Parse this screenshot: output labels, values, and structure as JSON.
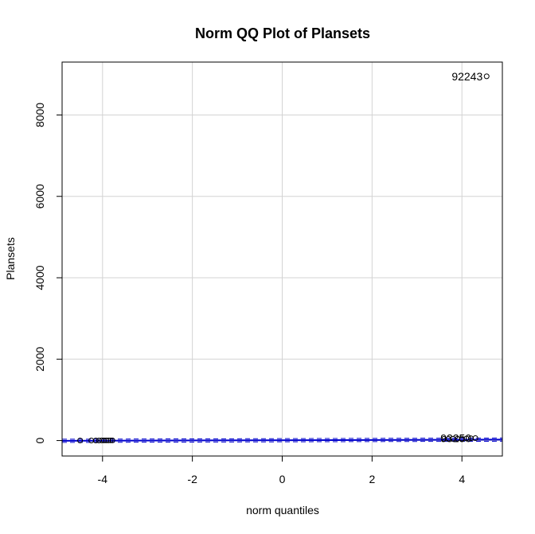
{
  "chart_data": {
    "type": "scatter",
    "title": "Norm QQ Plot of Plansets",
    "xlabel": "norm quantiles",
    "ylabel": "Plansets",
    "xlim": [
      -4.9,
      4.9
    ],
    "ylim": [
      -380,
      9300
    ],
    "x_ticks": [
      -4,
      -2,
      0,
      2,
      4
    ],
    "y_ticks": [
      0,
      2000,
      4000,
      6000,
      8000
    ],
    "grid": true,
    "series": [
      {
        "points": [
          [
            -4.5,
            1
          ],
          [
            -4.25,
            1
          ],
          [
            -4.15,
            2
          ],
          [
            -4.08,
            2
          ],
          [
            -4.02,
            3
          ],
          [
            -3.97,
            3
          ],
          [
            -3.92,
            4
          ],
          [
            -3.87,
            4
          ],
          [
            -3.82,
            5
          ],
          [
            -3.78,
            5
          ],
          [
            3.6,
            40
          ],
          [
            3.7,
            42
          ],
          [
            3.8,
            44
          ],
          [
            3.9,
            46
          ],
          [
            4.0,
            48
          ],
          [
            4.1,
            50
          ],
          [
            4.2,
            55
          ],
          [
            4.3,
            60
          ],
          [
            4.55,
            8950
          ]
        ]
      }
    ],
    "labeled_points": [
      {
        "label": "92243",
        "x": 4.55,
        "y": 8950
      },
      {
        "label": "93250",
        "x": 4.3,
        "y": 60
      }
    ],
    "reference_line": {
      "color": "#0000cc",
      "intercept": 8,
      "slope": 3
    }
  }
}
